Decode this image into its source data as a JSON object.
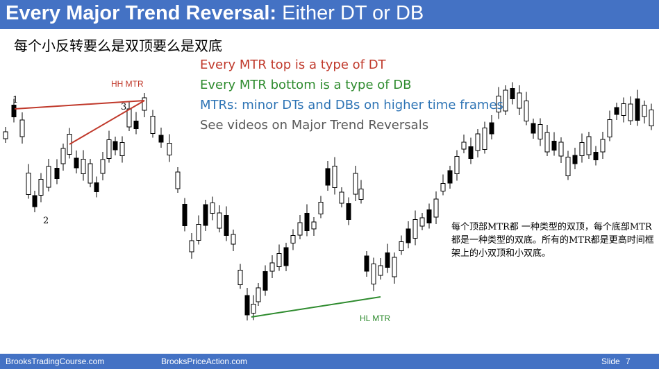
{
  "slide": {
    "title_bold": "Every Major Trend Reversal:",
    "title_rest": " Either DT or DB",
    "subtitle": "每个小反转要么是双顶要么是双底",
    "number_label": "Slide",
    "number": "7"
  },
  "notes": {
    "line1": "Every MTR top is a type of DT",
    "line2": "Every MTR bottom is a type of DB",
    "line3": "MTRs: minor DTs and DBs on higher time frames",
    "line4": "See videos on Major Trend Reversals"
  },
  "colors": {
    "red": "#c0392b",
    "green": "#2e8b2e",
    "blue": "#2e74b5",
    "gray": "#595959",
    "header": "#4472c4"
  },
  "chart_annotations": {
    "label_1": "1",
    "label_2": "2",
    "label_3": "3",
    "hh_mtr": "HH MTR",
    "hl_mtr": "HL MTR"
  },
  "chinese_note": "每个顶部MTR都 一种类型的双顶，每个底部MTR都是一种类型的双底。所有的MTR都是更高时间框架上的小双顶和小双底。",
  "footer": {
    "site1": "BrooksTradingCourse.com",
    "site2": "BrooksPriceAction.com"
  }
}
